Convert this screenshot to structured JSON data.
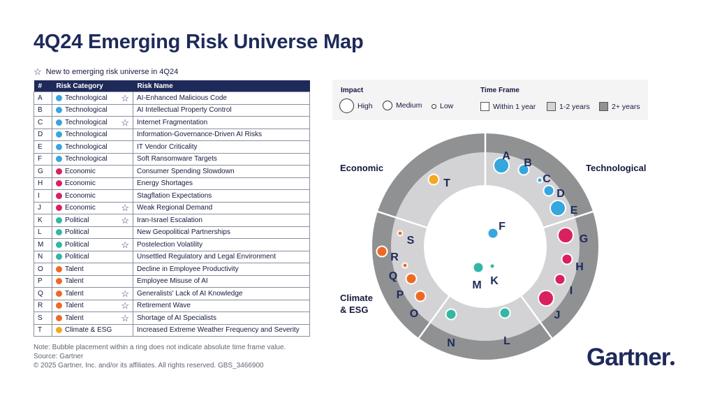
{
  "title": "4Q24 Emerging Risk Universe Map",
  "new_legend": "New to emerging risk universe in 4Q24",
  "table": {
    "headers": [
      "#",
      "Risk Category",
      "Risk Name"
    ],
    "rows": [
      {
        "id": "A",
        "category": "Technological",
        "name": "AI-Enhanced Malicious Code",
        "new": true
      },
      {
        "id": "B",
        "category": "Technological",
        "name": "AI Intellectual Property Control",
        "new": false
      },
      {
        "id": "C",
        "category": "Technological",
        "name": "Internet Fragmentation",
        "new": true
      },
      {
        "id": "D",
        "category": "Technological",
        "name": "Information-Governance-Driven AI Risks",
        "new": false
      },
      {
        "id": "E",
        "category": "Technological",
        "name": "IT Vendor Criticality",
        "new": false
      },
      {
        "id": "F",
        "category": "Technological",
        "name": "Soft Ransomware Targets",
        "new": false
      },
      {
        "id": "G",
        "category": "Economic",
        "name": "Consumer Spending Slowdown",
        "new": false
      },
      {
        "id": "H",
        "category": "Economic",
        "name": "Energy Shortages",
        "new": false
      },
      {
        "id": "I",
        "category": "Economic",
        "name": "Stagflation Expectations",
        "new": false
      },
      {
        "id": "J",
        "category": "Economic",
        "name": "Weak Regional Demand",
        "new": true
      },
      {
        "id": "K",
        "category": "Political",
        "name": "Iran-Israel Escalation",
        "new": true
      },
      {
        "id": "L",
        "category": "Political",
        "name": "New Geopolitical Partnerships",
        "new": false
      },
      {
        "id": "M",
        "category": "Political",
        "name": "Postelection Volatility",
        "new": true
      },
      {
        "id": "N",
        "category": "Political",
        "name": "Unsettled Regulatory and Legal Environment",
        "new": false
      },
      {
        "id": "O",
        "category": "Talent",
        "name": "Decline in Employee Productivity",
        "new": false
      },
      {
        "id": "P",
        "category": "Talent",
        "name": "Employee Misuse of AI",
        "new": false
      },
      {
        "id": "Q",
        "category": "Talent",
        "name": "Generalists' Lack of AI Knowledge",
        "new": true
      },
      {
        "id": "R",
        "category": "Talent",
        "name": "Retirement Wave",
        "new": true
      },
      {
        "id": "S",
        "category": "Talent",
        "name": "Shortage of AI Specialists",
        "new": true
      },
      {
        "id": "T",
        "category": "Climate & ESG",
        "name": "Increased Extreme Weather Frequency and Severity",
        "new": false
      }
    ]
  },
  "category_colors": {
    "Technological": "#36a6de",
    "Economic": "#d9215f",
    "Political": "#33b7a5",
    "Talent": "#ec6a25",
    "Climate & ESG": "#f5a623"
  },
  "key": {
    "impact_title": "Impact",
    "impact_items": [
      "High",
      "Medium",
      "Low"
    ],
    "time_title": "Time Frame",
    "time_items": [
      "Within 1 year",
      "1-2 years",
      "2+ years"
    ]
  },
  "segments": {
    "economic": "Economic",
    "technological": "Technological",
    "climate_line1": "Climate",
    "climate_line2": "& ESG"
  },
  "bubbles": [
    {
      "id": "A",
      "category": "Technological",
      "impact": "High",
      "ring": "1-2 years"
    },
    {
      "id": "B",
      "category": "Technological",
      "impact": "Medium",
      "ring": "1-2 years"
    },
    {
      "id": "C",
      "category": "Technological",
      "impact": "Low",
      "ring": "1-2 years"
    },
    {
      "id": "D",
      "category": "Technological",
      "impact": "Medium",
      "ring": "1-2 years"
    },
    {
      "id": "E",
      "category": "Technological",
      "impact": "High",
      "ring": "1-2 years"
    },
    {
      "id": "F",
      "category": "Technological",
      "impact": "Medium",
      "ring": "Within 1 year"
    },
    {
      "id": "G",
      "category": "Economic",
      "impact": "High",
      "ring": "1-2 years"
    },
    {
      "id": "H",
      "category": "Economic",
      "impact": "Medium",
      "ring": "1-2 years"
    },
    {
      "id": "I",
      "category": "Economic",
      "impact": "Medium",
      "ring": "1-2 years"
    },
    {
      "id": "J",
      "category": "Economic",
      "impact": "High",
      "ring": "1-2 years"
    },
    {
      "id": "K",
      "category": "Political",
      "impact": "Low",
      "ring": "Within 1 year"
    },
    {
      "id": "L",
      "category": "Political",
      "impact": "Medium",
      "ring": "1-2 years"
    },
    {
      "id": "M",
      "category": "Political",
      "impact": "Medium",
      "ring": "Within 1 year"
    },
    {
      "id": "N",
      "category": "Political",
      "impact": "Medium",
      "ring": "1-2 years"
    },
    {
      "id": "O",
      "category": "Talent",
      "impact": "Medium",
      "ring": "1-2 years"
    },
    {
      "id": "P",
      "category": "Talent",
      "impact": "Medium",
      "ring": "1-2 years"
    },
    {
      "id": "Q",
      "category": "Talent",
      "impact": "Low",
      "ring": "1-2 years"
    },
    {
      "id": "R",
      "category": "Talent",
      "impact": "Medium",
      "ring": "1-2 years"
    },
    {
      "id": "S",
      "category": "Talent",
      "impact": "Low",
      "ring": "1-2 years"
    },
    {
      "id": "T",
      "category": "Climate & ESG",
      "impact": "Medium",
      "ring": "1-2 years"
    }
  ],
  "notes": [
    "Note: Bubble placement within a ring does not indicate absolute time frame value.",
    "Source: Gartner",
    "© 2025 Gartner, Inc. and/or its affiliates. All rights reserved. GBS_3466900"
  ],
  "brand": "Gartner"
}
